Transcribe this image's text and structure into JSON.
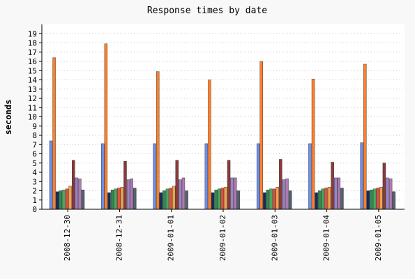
{
  "chart_data": {
    "type": "bar",
    "title": "Response times by date",
    "ylabel": "seconds",
    "xlabel": "",
    "ylim": [
      0,
      20
    ],
    "yticks": [
      0,
      1,
      2,
      3,
      4,
      5,
      6,
      7,
      8,
      9,
      10,
      11,
      12,
      13,
      14,
      15,
      16,
      17,
      18,
      19
    ],
    "grid": true,
    "legend": "none",
    "categories": [
      "2008-12-30",
      "2008-12-31",
      "2009-01-01",
      "2009-01-02",
      "2009-01-03",
      "2009-01-04",
      "2009-01-05"
    ],
    "series": [
      {
        "color": "#6f8fe8",
        "values": [
          7.4,
          7.1,
          7.1,
          7.1,
          7.1,
          7.1,
          7.2
        ]
      },
      {
        "color": "#ff7f2a",
        "values": [
          16.4,
          17.9,
          14.9,
          14.0,
          16.0,
          14.1,
          15.7
        ]
      },
      {
        "color": "#1a2a5a",
        "values": [
          1.9,
          1.8,
          1.8,
          1.8,
          1.8,
          1.8,
          2.0
        ]
      },
      {
        "color": "#2e8a4e",
        "values": [
          2.0,
          2.1,
          2.0,
          2.1,
          2.1,
          2.0,
          2.1
        ]
      },
      {
        "color": "#4aa85e",
        "values": [
          2.1,
          2.2,
          2.2,
          2.2,
          2.2,
          2.2,
          2.2
        ]
      },
      {
        "color": "#e0503a",
        "values": [
          2.2,
          2.3,
          2.3,
          2.3,
          2.2,
          2.3,
          2.3
        ]
      },
      {
        "color": "#f2a24a",
        "values": [
          2.5,
          2.4,
          2.5,
          2.4,
          2.4,
          2.4,
          2.4
        ]
      },
      {
        "color": "#8b3a3a",
        "values": [
          5.3,
          5.2,
          5.3,
          5.3,
          5.4,
          5.1,
          5.0
        ]
      },
      {
        "color": "#9a84c8",
        "values": [
          3.4,
          3.2,
          3.2,
          3.4,
          3.2,
          3.4,
          3.4
        ]
      },
      {
        "color": "#b07ab0",
        "values": [
          3.3,
          3.3,
          3.4,
          3.4,
          3.3,
          3.4,
          3.3
        ]
      },
      {
        "color": "#556070",
        "values": [
          2.1,
          2.3,
          2.0,
          2.0,
          2.0,
          2.3,
          1.9
        ]
      }
    ]
  }
}
